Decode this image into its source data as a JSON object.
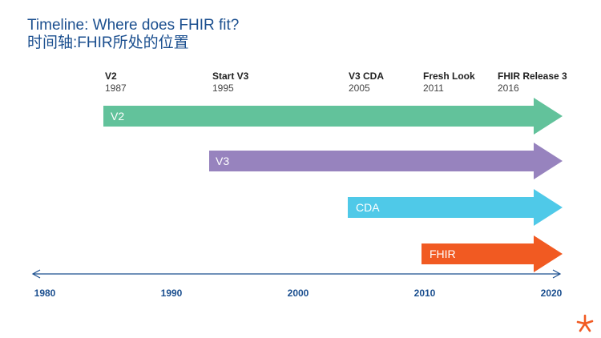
{
  "title": {
    "line1": "Timeline: Where does FHIR fit?",
    "line2": "时间轴:FHIR所处的位置"
  },
  "milestones": [
    {
      "name": "V2",
      "year": "1987"
    },
    {
      "name": "Start V3",
      "year": "1995"
    },
    {
      "name": "V3 CDA",
      "year": "2005"
    },
    {
      "name": "Fresh Look",
      "year": "2011"
    },
    {
      "name": "FHIR Release 3",
      "year": "2016"
    }
  ],
  "arrows": [
    {
      "label": "V2",
      "color": "#62c29b"
    },
    {
      "label": "V3",
      "color": "#9783be"
    },
    {
      "label": "CDA",
      "color": "#4fc9e8"
    },
    {
      "label": "FHIR",
      "color": "#f15a22"
    }
  ],
  "axis": {
    "ticks": [
      "1980",
      "1990",
      "2000",
      "2010",
      "2020"
    ],
    "color": "#1b4f8f"
  },
  "logo": {
    "icon": "star-logo-icon",
    "color": "#f15a22"
  }
}
